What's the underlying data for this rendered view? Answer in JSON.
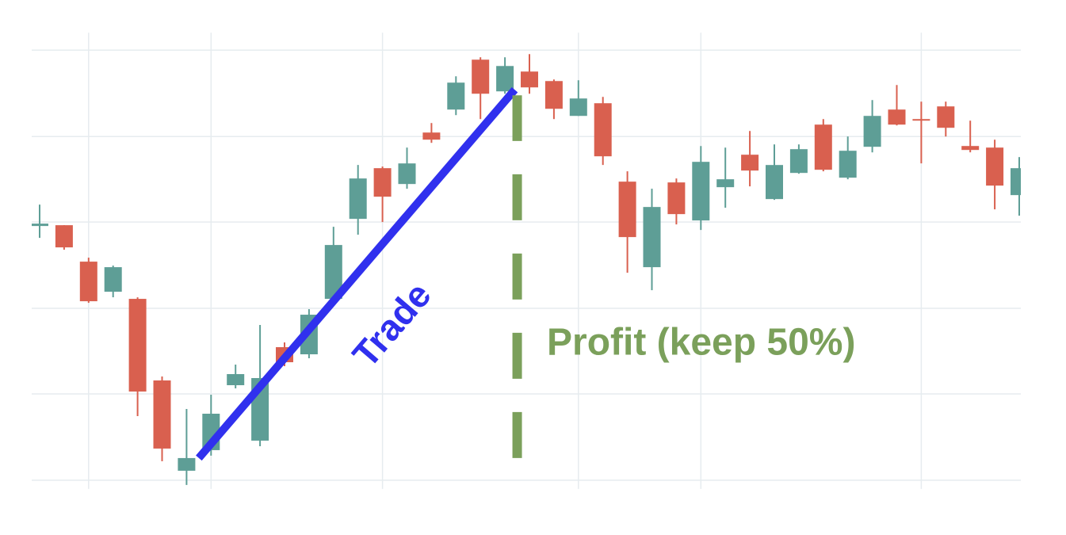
{
  "chart_data": {
    "type": "candlestick",
    "categories": [
      null,
      null,
      null,
      null,
      null,
      null,
      null,
      null,
      null,
      null,
      null,
      null,
      null,
      null,
      null,
      null,
      null,
      null,
      null,
      null,
      null,
      null,
      null,
      null,
      null,
      null,
      null,
      null,
      null,
      null,
      null,
      null,
      null,
      null,
      null,
      null,
      null,
      null,
      null,
      null,
      null
    ],
    "open": [
      321,
      322,
      276,
      238,
      229,
      126,
      12,
      38,
      120,
      50,
      168,
      159,
      229,
      330,
      394,
      374,
      439,
      468,
      531,
      491,
      516,
      504,
      460,
      476,
      377,
      269,
      376,
      328,
      370,
      411,
      355,
      388,
      449,
      382,
      421,
      468,
      456,
      472,
      422,
      420,
      360
    ],
    "high": [
      348,
      322,
      281,
      271,
      231,
      131,
      90,
      108,
      146,
      196,
      174,
      216,
      320,
      398,
      396,
      420,
      451,
      510,
      534,
      534,
      538,
      506,
      505,
      484,
      390,
      368,
      381,
      422,
      420,
      441,
      424,
      424,
      456,
      434,
      480,
      499,
      478,
      478,
      454,
      430,
      408
    ],
    "low": [
      306,
      291,
      224,
      231,
      81,
      24,
      -6,
      31,
      116,
      43,
      144,
      154,
      226,
      310,
      326,
      368,
      426,
      461,
      456,
      488,
      488,
      456,
      460,
      398,
      262,
      240,
      323,
      316,
      344,
      371,
      354,
      387,
      390,
      380,
      414,
      448,
      400,
      434,
      414,
      342,
      334
    ],
    "close": [
      324,
      294,
      226,
      269,
      112,
      40,
      28,
      84,
      134,
      129,
      149,
      209,
      297,
      381,
      358,
      400,
      430,
      502,
      488,
      523,
      496,
      469,
      482,
      409,
      307,
      345,
      336,
      402,
      380,
      391,
      398,
      418,
      392,
      416,
      460,
      449,
      454,
      445,
      417,
      372,
      394
    ],
    "up_color": "#5e9e96",
    "down_color": "#d9604f",
    "ylim": [
      -11,
      565
    ],
    "ygrid": [
      0,
      109,
      217,
      326,
      434,
      543
    ],
    "xgrid": [
      2,
      7,
      14,
      22,
      27,
      36
    ],
    "grid": true,
    "annotations": [
      {
        "text": "Trade",
        "color": "#3030ee",
        "x": [
          6.5,
          19.4
        ],
        "y": [
          28,
          493
        ]
      },
      {
        "text": "Profit (keep 50%)",
        "color": "#7ba05b",
        "x": [
          19.5,
          19.5
        ],
        "y": [
          28,
          486
        ]
      }
    ]
  }
}
